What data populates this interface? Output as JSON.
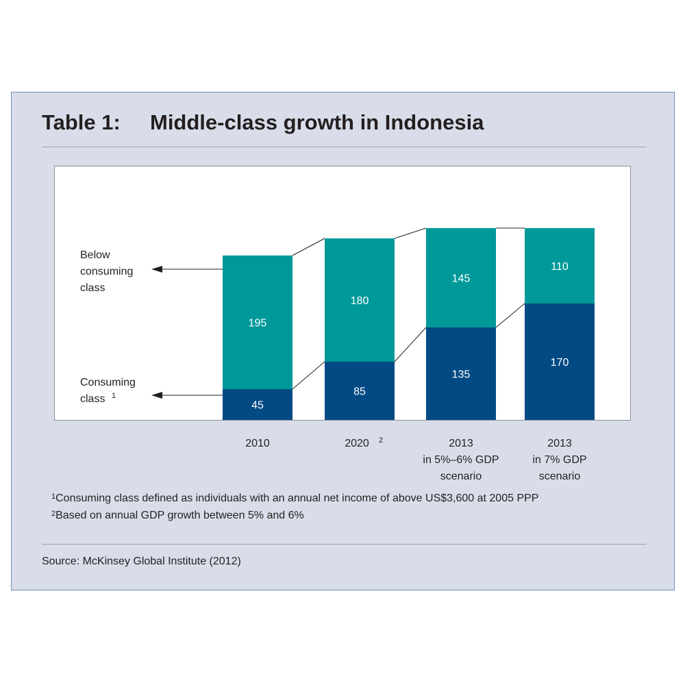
{
  "title": {
    "number": "Table 1:",
    "text": "Middle-class growth in Indonesia"
  },
  "chart_data": {
    "type": "bar",
    "stacked": true,
    "categories": [
      [
        "2010"
      ],
      [
        "2020"
      ],
      [
        "2013",
        "in 5%–6% GDP",
        "scenario"
      ],
      [
        "2013",
        "in 7% GDP",
        "scenario"
      ]
    ],
    "category_superscripts": [
      "",
      "2",
      "",
      ""
    ],
    "series": [
      {
        "name": "Consuming class",
        "values": [
          45,
          85,
          135,
          170
        ],
        "color": "#024a84"
      },
      {
        "name": "Below consuming class",
        "values": [
          195,
          180,
          145,
          110
        ],
        "color": "#00999a"
      }
    ],
    "legend_labels": {
      "below": [
        "Below",
        "consuming",
        "class"
      ],
      "consuming": [
        "Consuming",
        "class"
      ],
      "consuming_superscript": "1"
    },
    "ylim": [
      0,
      300
    ],
    "connector_lines": true
  },
  "footnotes": [
    {
      "mark": "1",
      "text": "Consuming class defined as individuals with an annual net income of above US$3,600 at 2005 PPP"
    },
    {
      "mark": "2",
      "text": "Based on annual GDP growth between 5% and 6%"
    }
  ],
  "source": "Source: McKinsey Global Institute (2012)"
}
